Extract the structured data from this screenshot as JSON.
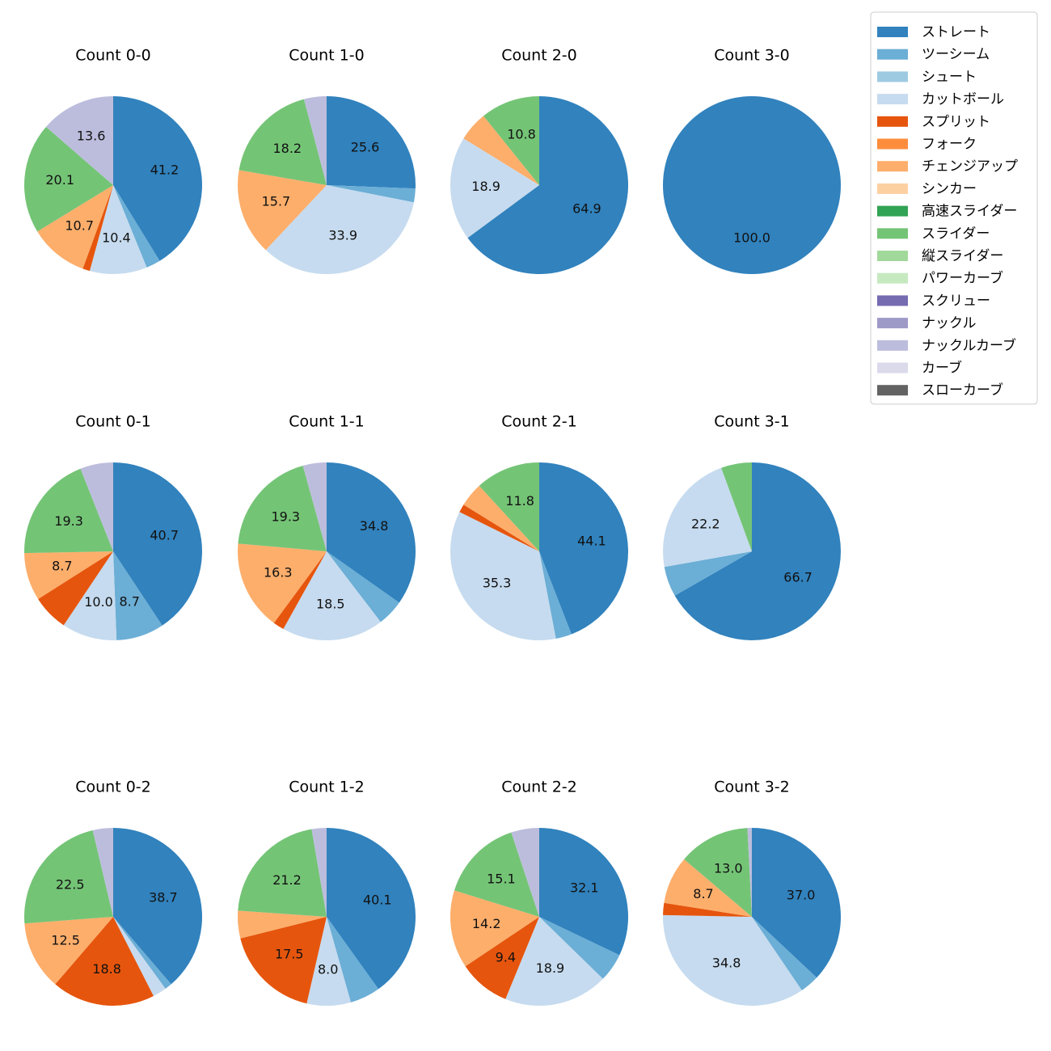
{
  "chart_data": {
    "type": "pie",
    "legend_placement": "top-right",
    "categories": [
      "ストレート",
      "ツーシーム",
      "シュート",
      "カットボール",
      "スプリット",
      "フォーク",
      "チェンジアップ",
      "シンカー",
      "高速スライダー",
      "スライダー",
      "縦スライダー",
      "パワーカーブ",
      "スクリュー",
      "ナックル",
      "ナックルカーブ",
      "カーブ",
      "スローカーブ"
    ],
    "colors": [
      "#3182bd",
      "#6baed6",
      "#9ecae1",
      "#c6dbef",
      "#e6550d",
      "#fd8d3c",
      "#fdae6b",
      "#fdd0a2",
      "#31a354",
      "#74c476",
      "#a1d99b",
      "#c7e9c0",
      "#756bb1",
      "#9e9ac8",
      "#bcbddc",
      "#dadaeb",
      "#636363"
    ],
    "pies": [
      {
        "title": "Count 0-0",
        "values": [
          41.2,
          2.6,
          0,
          10.4,
          1.3,
          0,
          10.7,
          0,
          0,
          20.1,
          0,
          0,
          0,
          0,
          13.6,
          0,
          0
        ],
        "labels": [
          "41.2",
          "",
          "",
          "10.4",
          "",
          "",
          "10.7",
          "",
          "",
          "20.1",
          "",
          "",
          "",
          "",
          "13.6",
          "",
          ""
        ]
      },
      {
        "title": "Count 1-0",
        "values": [
          25.6,
          2.5,
          0,
          33.9,
          0,
          0,
          15.7,
          0,
          0,
          18.2,
          0,
          0,
          0,
          0,
          4.1,
          0,
          0
        ],
        "labels": [
          "25.6",
          "",
          "",
          "33.9",
          "",
          "",
          "15.7",
          "",
          "",
          "18.2",
          "",
          "",
          "",
          "",
          "",
          "",
          ""
        ]
      },
      {
        "title": "Count 2-0",
        "values": [
          64.9,
          0,
          0,
          18.9,
          0,
          0,
          5.4,
          0,
          0,
          10.8,
          0,
          0,
          0,
          0,
          0,
          0,
          0
        ],
        "labels": [
          "64.9",
          "",
          "",
          "18.9",
          "",
          "",
          "",
          "",
          "",
          "10.8",
          "",
          "",
          "",
          "",
          "",
          "",
          ""
        ]
      },
      {
        "title": "Count 3-0",
        "values": [
          100,
          0,
          0,
          0,
          0,
          0,
          0,
          0,
          0,
          0,
          0,
          0,
          0,
          0,
          0,
          0,
          0
        ],
        "labels": [
          "100.0",
          "",
          "",
          "",
          "",
          "",
          "",
          "",
          "",
          "",
          "",
          "",
          "",
          "",
          "",
          "",
          ""
        ]
      },
      {
        "title": "Count 0-1",
        "values": [
          40.7,
          8.7,
          0,
          10.0,
          6.6,
          0,
          8.7,
          0,
          0,
          19.3,
          0,
          0,
          0,
          0,
          6.0,
          0,
          0
        ],
        "labels": [
          "40.7",
          "8.7",
          "",
          "10.0",
          "",
          "",
          "8.7",
          "",
          "",
          "19.3",
          "",
          "",
          "",
          "",
          "",
          "",
          ""
        ]
      },
      {
        "title": "Count 1-1",
        "values": [
          34.8,
          4.8,
          0,
          18.5,
          2.0,
          0,
          16.3,
          0,
          0,
          19.3,
          0,
          0,
          0,
          0,
          4.3,
          0,
          0
        ],
        "labels": [
          "34.8",
          "",
          "",
          "18.5",
          "",
          "",
          "16.3",
          "",
          "",
          "19.3",
          "",
          "",
          "",
          "",
          "",
          "",
          ""
        ]
      },
      {
        "title": "Count 2-1",
        "values": [
          44.1,
          2.9,
          0,
          35.3,
          1.5,
          0,
          4.4,
          0,
          0,
          11.8,
          0,
          0,
          0,
          0,
          0,
          0,
          0
        ],
        "labels": [
          "44.1",
          "",
          "",
          "35.3",
          "",
          "",
          "",
          "",
          "",
          "11.8",
          "",
          "",
          "",
          "",
          "",
          "",
          ""
        ]
      },
      {
        "title": "Count 3-1",
        "values": [
          66.7,
          5.5,
          0,
          22.2,
          0,
          0,
          0,
          0,
          0,
          5.6,
          0,
          0,
          0,
          0,
          0,
          0,
          0
        ],
        "labels": [
          "66.7",
          "",
          "",
          "22.2",
          "",
          "",
          "",
          "",
          "",
          "",
          "",
          "",
          "",
          "",
          "",
          "",
          ""
        ]
      },
      {
        "title": "Count 0-2",
        "values": [
          38.7,
          1.3,
          0,
          2.5,
          18.8,
          0,
          12.5,
          0,
          0,
          22.5,
          0,
          0,
          0,
          0,
          3.7,
          0,
          0
        ],
        "labels": [
          "38.7",
          "",
          "",
          "",
          "18.8",
          "",
          "12.5",
          "",
          "",
          "22.5",
          "",
          "",
          "",
          "",
          "",
          "",
          ""
        ]
      },
      {
        "title": "Count 1-2",
        "values": [
          40.1,
          5.5,
          0,
          8.0,
          17.5,
          0,
          5.0,
          0,
          0,
          21.2,
          0,
          0,
          0,
          0,
          2.7,
          0,
          0
        ],
        "labels": [
          "40.1",
          "",
          "",
          "8.0",
          "17.5",
          "",
          "",
          "",
          "",
          "21.2",
          "",
          "",
          "",
          "",
          "",
          "",
          ""
        ]
      },
      {
        "title": "Count 2-2",
        "values": [
          32.1,
          5.2,
          0,
          18.9,
          9.4,
          0,
          14.2,
          0,
          0,
          15.1,
          0,
          0,
          0,
          0,
          5.1,
          0,
          0
        ],
        "labels": [
          "32.1",
          "",
          "",
          "18.9",
          "9.4",
          "",
          "14.2",
          "",
          "",
          "15.1",
          "",
          "",
          "",
          "",
          "",
          "",
          ""
        ]
      },
      {
        "title": "Count 3-2",
        "values": [
          37.0,
          3.5,
          0,
          34.8,
          2.2,
          0,
          8.7,
          0,
          0,
          13.0,
          0,
          0,
          0,
          0,
          0.8,
          0,
          0
        ],
        "labels": [
          "37.0",
          "",
          "",
          "34.8",
          "",
          "",
          "8.7",
          "",
          "",
          "13.0",
          "",
          "",
          "",
          "",
          "",
          "",
          ""
        ]
      }
    ]
  }
}
